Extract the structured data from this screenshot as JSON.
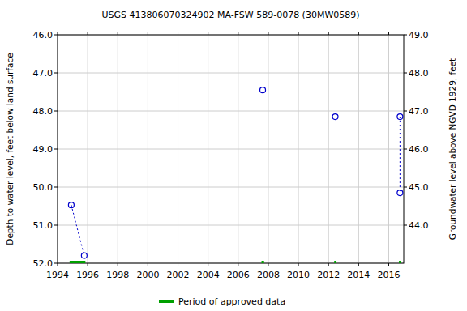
{
  "chart_data": {
    "type": "line",
    "title": "USGS 413806070324902 MA-FSW  589-0078 (30MW0589)",
    "y_label": "Depth to water level, feet below land surface",
    "y2_label": "Groundwater level above NGVD 1929, feet",
    "xlim": [
      1994,
      2017
    ],
    "xticks": [
      1994,
      1996,
      1998,
      2000,
      2002,
      2004,
      2006,
      2008,
      2010,
      2012,
      2014,
      2016
    ],
    "ylim": [
      52,
      46
    ],
    "yticks": [
      {
        "value": 46,
        "label": "46.0"
      },
      {
        "value": 47,
        "label": "47.0"
      },
      {
        "value": 48,
        "label": "48.0"
      },
      {
        "value": 49,
        "label": "49.0"
      },
      {
        "value": 50,
        "label": "50.0"
      },
      {
        "value": 51,
        "label": "51.0"
      },
      {
        "value": 52,
        "label": "52.0"
      }
    ],
    "y2lim": [
      43,
      49
    ],
    "y2ticks": [
      {
        "value": 44,
        "label": "44.0"
      },
      {
        "value": 45,
        "label": "45.0"
      },
      {
        "value": 46,
        "label": "46.0"
      },
      {
        "value": 47,
        "label": "47.0"
      },
      {
        "value": 48,
        "label": "48.0"
      },
      {
        "value": 49,
        "label": "49.0"
      }
    ],
    "grid": true,
    "series": [
      {
        "name": "Depth to water level",
        "color": "#0000cc",
        "marker": "circle",
        "line_style": "dotted",
        "x": [
          1994.91,
          1995.77,
          1995.77,
          2007.63,
          2007.63,
          2012.45,
          2012.45,
          2016.75,
          2016.75
        ],
        "values": [
          50.47,
          51.8,
          null,
          47.45,
          null,
          48.15,
          null,
          48.15,
          50.15
        ]
      },
      {
        "name": "Period of approved data",
        "color": "#00a000",
        "type": "period",
        "start": [
          1994.8,
          2007.55,
          2012.38,
          2016.68
        ],
        "end": [
          1995.85,
          2007.72,
          2012.53,
          2016.83
        ]
      }
    ]
  }
}
